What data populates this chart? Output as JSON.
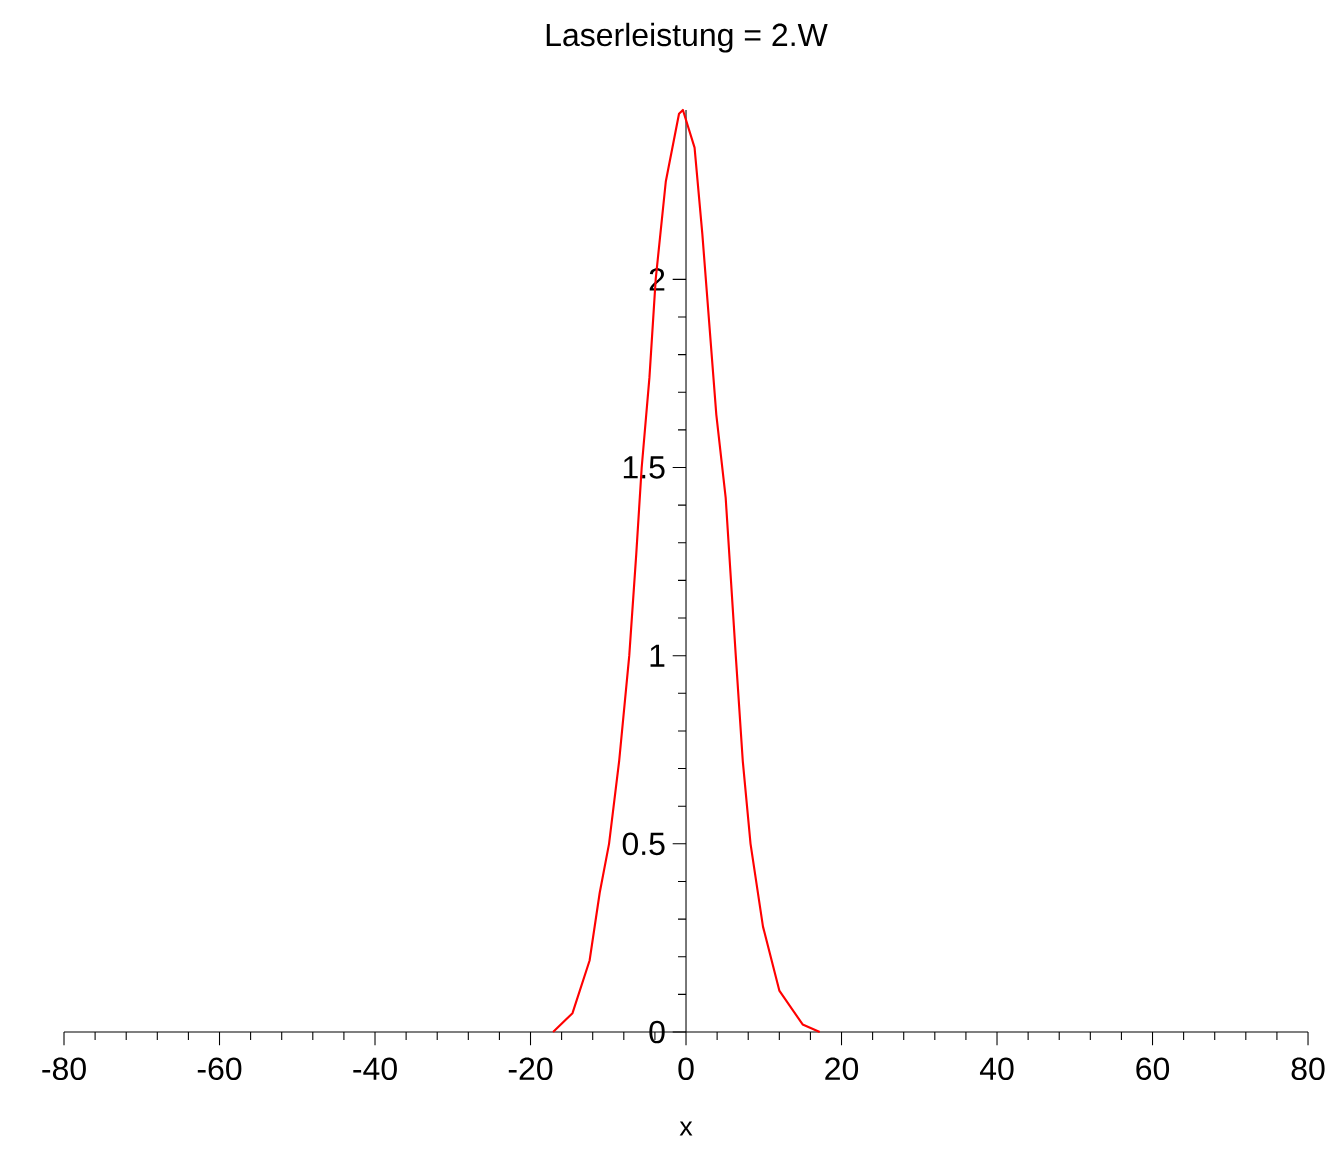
{
  "chart_data": {
    "type": "line",
    "title": "Laserleistung = 2.W",
    "xlabel": "x",
    "series": [
      {
        "color": "#ff0000",
        "x": [
          -17.1,
          -14.6,
          -12.4,
          -11.1,
          -9.9,
          -8.6,
          -7.3,
          -6.4,
          -5.7,
          -4.7,
          -3.9,
          -2.6,
          -0.9,
          -0.4,
          1.1,
          2.1,
          3.0,
          3.9,
          5.1,
          6.4,
          7.3,
          8.3,
          9.9,
          12.0,
          15.0,
          17.2
        ],
        "values": [
          0,
          0.05,
          0.19,
          0.37,
          0.5,
          0.72,
          1.0,
          1.27,
          1.5,
          1.74,
          2.0,
          2.26,
          2.44,
          2.45,
          2.35,
          2.12,
          1.88,
          1.64,
          1.42,
          1.0,
          0.72,
          0.5,
          0.28,
          0.11,
          0.02,
          0
        ]
      }
    ],
    "xlim": [
      -80,
      80
    ],
    "ylim": [
      0,
      2.45
    ],
    "xticks": [
      -80,
      -60,
      -40,
      -20,
      0,
      20,
      40,
      60,
      80
    ],
    "yticks": [
      0,
      0.5,
      1,
      1.5,
      2
    ],
    "grid": false,
    "marker": "none",
    "line_style": "solid"
  }
}
